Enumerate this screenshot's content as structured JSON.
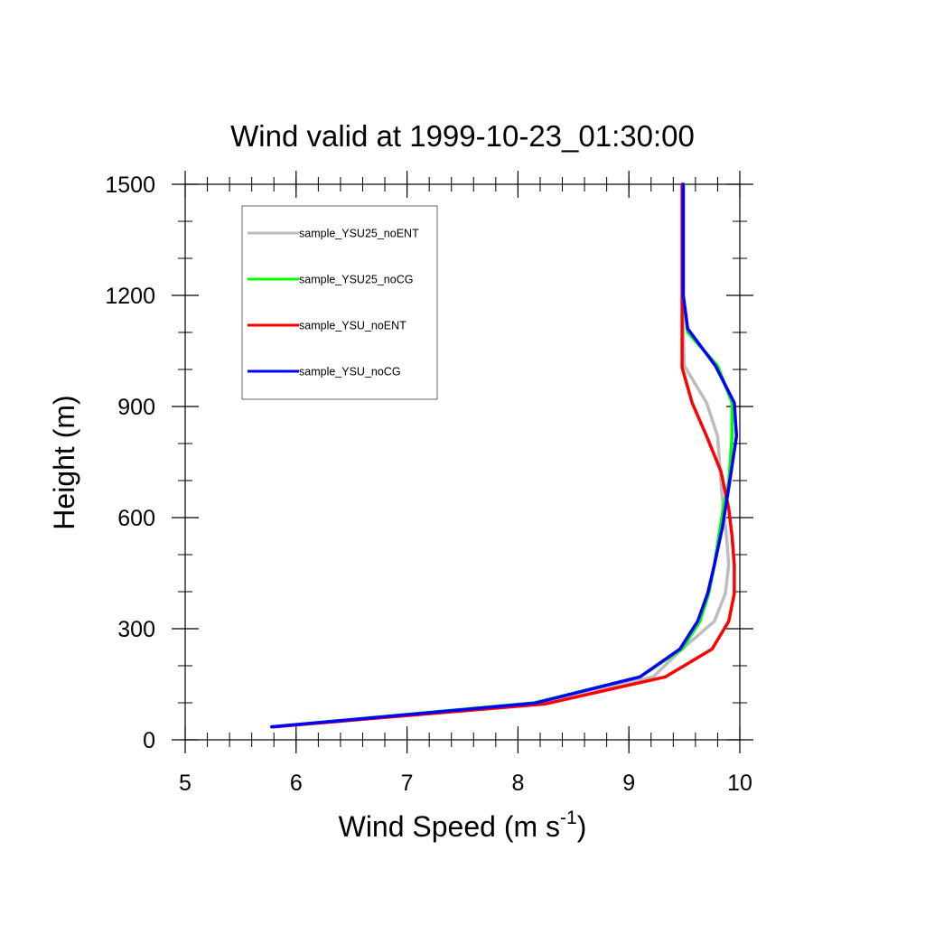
{
  "chart_data": {
    "type": "line",
    "title": "Wind valid at 1999-10-23_01:30:00",
    "xlabel": "Wind Speed (m s",
    "xlabel_superscript": "-1",
    "xlabel_suffix": ")",
    "ylabel": "Height (m)",
    "xlim": [
      5,
      10
    ],
    "ylim": [
      0,
      1500
    ],
    "xticks": [
      5,
      6,
      7,
      8,
      9,
      10
    ],
    "yticks": [
      0,
      300,
      600,
      900,
      1200,
      1500
    ],
    "xtick_labels": [
      "5",
      "6",
      "7",
      "8",
      "9",
      "10"
    ],
    "ytick_labels": [
      "0",
      "300",
      "600",
      "900",
      "1200",
      "1500"
    ],
    "legend_placement": "top-left",
    "grid": false,
    "series": [
      {
        "name": "sample_YSU25_noENT",
        "color": "#bdbdbd",
        "points": [
          [
            5.78,
            35
          ],
          [
            8.2,
            98
          ],
          [
            9.22,
            170
          ],
          [
            9.48,
            245
          ],
          [
            9.77,
            320
          ],
          [
            9.87,
            395
          ],
          [
            9.9,
            472
          ],
          [
            9.88,
            550
          ],
          [
            9.85,
            625
          ],
          [
            9.83,
            695
          ],
          [
            9.8,
            820
          ],
          [
            9.7,
            910
          ],
          [
            9.5,
            1010
          ],
          [
            9.49,
            1100
          ],
          [
            9.49,
            1200
          ],
          [
            9.49,
            1300
          ],
          [
            9.49,
            1400
          ],
          [
            9.49,
            1500
          ]
        ]
      },
      {
        "name": "sample_YSU25_noCG",
        "color": "#00ff00",
        "points": [
          [
            5.78,
            35
          ],
          [
            8.15,
            100
          ],
          [
            9.1,
            170
          ],
          [
            9.48,
            245
          ],
          [
            9.64,
            320
          ],
          [
            9.72,
            395
          ],
          [
            9.77,
            472
          ],
          [
            9.81,
            550
          ],
          [
            9.85,
            625
          ],
          [
            9.9,
            695
          ],
          [
            9.93,
            820
          ],
          [
            9.93,
            910
          ],
          [
            9.8,
            1010
          ],
          [
            9.53,
            1100
          ],
          [
            9.49,
            1200
          ],
          [
            9.49,
            1300
          ],
          [
            9.49,
            1400
          ],
          [
            9.49,
            1500
          ]
        ]
      },
      {
        "name": "sample_YSU_noENT",
        "color": "#ff0000",
        "points": [
          [
            5.8,
            35
          ],
          [
            8.25,
            97
          ],
          [
            9.33,
            170
          ],
          [
            9.75,
            245
          ],
          [
            9.9,
            320
          ],
          [
            9.95,
            395
          ],
          [
            9.95,
            472
          ],
          [
            9.93,
            550
          ],
          [
            9.9,
            625
          ],
          [
            9.83,
            725
          ],
          [
            9.7,
            820
          ],
          [
            9.57,
            910
          ],
          [
            9.48,
            1005
          ],
          [
            9.48,
            1100
          ],
          [
            9.48,
            1200
          ],
          [
            9.48,
            1300
          ],
          [
            9.48,
            1400
          ],
          [
            9.48,
            1500
          ]
        ]
      },
      {
        "name": "sample_YSU_noCG",
        "color": "#0000ff",
        "points": [
          [
            5.78,
            35
          ],
          [
            8.15,
            99
          ],
          [
            9.1,
            170
          ],
          [
            9.46,
            245
          ],
          [
            9.62,
            320
          ],
          [
            9.71,
            395
          ],
          [
            9.77,
            472
          ],
          [
            9.84,
            570
          ],
          [
            9.9,
            680
          ],
          [
            9.97,
            820
          ],
          [
            9.95,
            910
          ],
          [
            9.78,
            1010
          ],
          [
            9.53,
            1110
          ],
          [
            9.49,
            1200
          ],
          [
            9.49,
            1300
          ],
          [
            9.49,
            1400
          ],
          [
            9.49,
            1500
          ]
        ]
      }
    ]
  }
}
